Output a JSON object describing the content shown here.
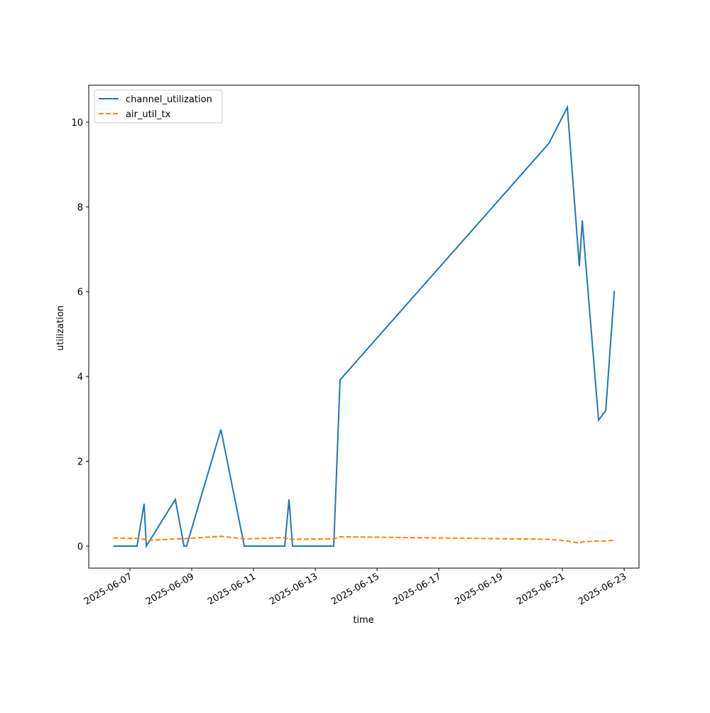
{
  "chart_data": {
    "type": "line",
    "xlabel": "time",
    "ylabel": "utilization",
    "x": [
      "2025-06-06 11:00",
      "2025-06-07 05:30",
      "2025-06-07 11:00",
      "2025-06-07 12:45",
      "2025-06-08 11:15",
      "2025-06-08 18:00",
      "2025-06-08 20:00",
      "2025-06-09 22:40",
      "2025-06-10 16:50",
      "2025-06-12 00:15",
      "2025-06-12 03:35",
      "2025-06-12 06:20",
      "2025-06-13 14:20",
      "2025-06-13 19:15",
      "2025-06-20 13:30",
      "2025-06-21 03:50",
      "2025-06-21 13:10",
      "2025-06-21 15:25",
      "2025-06-22 04:05",
      "2025-06-22 09:40",
      "2025-06-22 16:20"
    ],
    "series": [
      {
        "name": "channel_utilization",
        "color": "#1f77b4",
        "dashed": false,
        "values": [
          0,
          0,
          1.0,
          0,
          1.1,
          0,
          0,
          2.75,
          0,
          0,
          1.1,
          0,
          0,
          3.92,
          9.5,
          10.35,
          6.6,
          7.68,
          2.97,
          3.2,
          6.02
        ]
      },
      {
        "name": "air_util_tx",
        "color": "#ff7f0e",
        "dashed": true,
        "values": [
          0.19,
          0.18,
          0.16,
          0.13,
          0.17,
          0.17,
          0.18,
          0.23,
          0.17,
          0.2,
          0.16,
          0.16,
          0.17,
          0.22,
          0.16,
          0.12,
          0.07,
          0.1,
          0.12,
          0.12,
          0.14
        ]
      }
    ],
    "xlim": [
      "2025-06-05 16:00",
      "2025-06-23 11:30"
    ],
    "xticks": [
      "2025-06-07",
      "2025-06-09",
      "2025-06-11",
      "2025-06-13",
      "2025-06-15",
      "2025-06-17",
      "2025-06-19",
      "2025-06-21",
      "2025-06-23"
    ],
    "ylim": [
      -0.52,
      10.87
    ],
    "yticks": [
      0,
      2,
      4,
      6,
      8,
      10
    ],
    "legend": "upper left"
  }
}
